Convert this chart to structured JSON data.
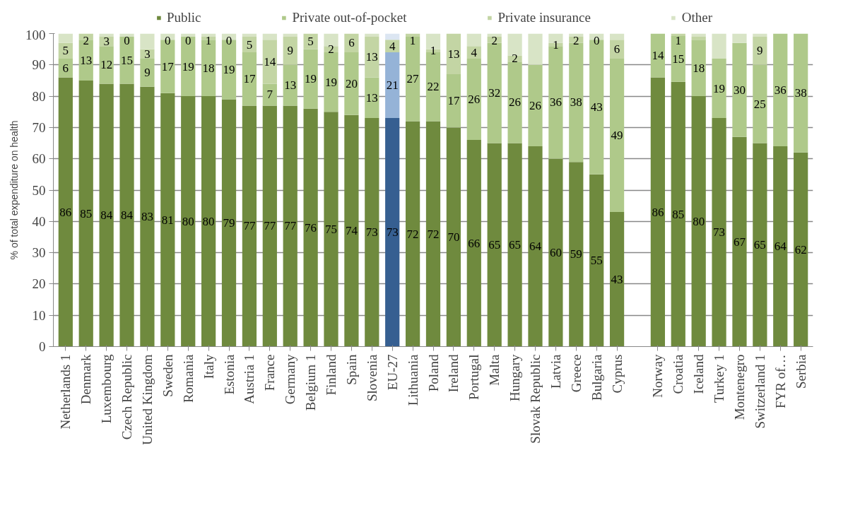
{
  "chart_data": {
    "type": "bar",
    "stacked": true,
    "ylabel": "% of total expenditure on health",
    "categories": [
      "Netherlands 1",
      "Denmark",
      "Luxembourg",
      "Czech Republic",
      "United Kingdom",
      "Sweden",
      "Romania",
      "Italy",
      "Estonia",
      "Austria 1",
      "France",
      "Germany",
      "Belgium 1",
      "Finland",
      "Spain",
      "Slovenia",
      "EU-27",
      "Lithuania",
      "Poland",
      "Ireland",
      "Portugal",
      "Malta",
      "Hungary",
      "Slovak Republic",
      "Latvia",
      "Greece",
      "Bulgaria",
      "Cyprus",
      null,
      "Norway",
      "Croatia",
      "Iceland",
      "Turkey 1",
      "Montenegro",
      "Switzerland 1",
      "FYR of…",
      "Serbia"
    ],
    "ylim": [
      0,
      100
    ],
    "yticks": [
      0,
      10,
      20,
      30,
      40,
      50,
      60,
      70,
      80,
      90,
      100
    ],
    "grid": "y",
    "legend": "top",
    "series": [
      {
        "name": "Public",
        "color": "#6f8a3e",
        "colors": [
          "#6f8a3e",
          "#6f8a3e",
          "#6f8a3e",
          "#6f8a3e",
          "#6f8a3e",
          "#6f8a3e",
          "#6f8a3e",
          "#6f8a3e",
          "#6f8a3e",
          "#6f8a3e",
          "#6f8a3e",
          "#6f8a3e",
          "#6f8a3e",
          "#6f8a3e",
          "#6f8a3e",
          "#6f8a3e",
          "#365f91",
          "#6f8a3e",
          "#6f8a3e",
          "#6f8a3e",
          "#6f8a3e",
          "#6f8a3e",
          "#6f8a3e",
          "#6f8a3e",
          "#6f8a3e",
          "#6f8a3e",
          "#6f8a3e",
          "#6f8a3e",
          "#6f8a3e",
          "#6f8a3e",
          "#6f8a3e",
          "#6f8a3e",
          "#6f8a3e",
          "#6f8a3e",
          "#6f8a3e",
          "#6f8a3e",
          "#6f8a3e"
        ],
        "values": [
          86,
          85,
          84,
          84,
          83,
          81,
          80,
          80,
          79,
          77,
          77,
          77,
          76,
          75,
          74,
          73,
          73,
          72,
          72,
          70,
          66,
          65,
          65,
          64,
          60,
          59,
          55,
          43,
          null,
          86,
          84.6,
          80,
          73,
          67,
          65,
          64,
          62
        ],
        "value_labels": [
          "86",
          "85",
          "84",
          "84",
          "83",
          "81",
          "80",
          "80",
          "79",
          "77",
          "77",
          "77",
          "76",
          "75",
          "74",
          "73",
          "73",
          "72",
          "72",
          "70",
          "66",
          "65",
          "65",
          "64",
          "60",
          "59",
          "55",
          "43",
          null,
          "86",
          "85",
          "80",
          "73",
          "67",
          "65",
          "64",
          "62"
        ]
      },
      {
        "name": "Private out-of-pocket",
        "color": "#afc98a",
        "colors": [
          "#afc98a",
          "#afc98a",
          "#afc98a",
          "#afc98a",
          "#afc98a",
          "#afc98a",
          "#afc98a",
          "#afc98a",
          "#afc98a",
          "#afc98a",
          "#afc98a",
          "#afc98a",
          "#afc98a",
          "#afc98a",
          "#afc98a",
          "#afc98a",
          "#95b3d7",
          "#afc98a",
          "#afc98a",
          "#afc98a",
          "#afc98a",
          "#afc98a",
          "#afc98a",
          "#afc98a",
          "#afc98a",
          "#afc98a",
          "#afc98a",
          "#afc98a",
          "#afc98a",
          "#afc98a",
          "#afc98a",
          "#afc98a",
          "#afc98a",
          "#afc98a",
          "#afc98a",
          "#afc98a",
          "#afc98a"
        ],
        "values": [
          6,
          13,
          12,
          15,
          9,
          17,
          19,
          18,
          19,
          17,
          7,
          13,
          19,
          19,
          20,
          13,
          21,
          27,
          22,
          17,
          26,
          32,
          26,
          26,
          36,
          38,
          43,
          49,
          null,
          14,
          14.6,
          18,
          19,
          30,
          25,
          36,
          38
        ],
        "value_labels": [
          "6",
          "13",
          "12",
          "15",
          "9",
          "17",
          "19",
          "18",
          "19",
          "17",
          "7",
          "13",
          "19",
          "19",
          "20",
          "13",
          "21",
          "27",
          "22",
          "17",
          "26",
          "32",
          "26",
          "26",
          "36",
          "38",
          "43",
          "49",
          null,
          "14",
          "15",
          "18",
          "19",
          "30",
          "25",
          "36",
          "38"
        ]
      },
      {
        "name": "Private insurance",
        "color": "#c3d5a4",
        "colors": [
          "#c3d5a4",
          "#c3d5a4",
          "#c3d5a4",
          "#c3d5a4",
          "#c3d5a4",
          "#c3d5a4",
          "#c3d5a4",
          "#c3d5a4",
          "#c3d5a4",
          "#c3d5a4",
          "#c3d5a4",
          "#c3d5a4",
          "#c3d5a4",
          "#c3d5a4",
          "#c3d5a4",
          "#c3d5a4",
          "#c3d5a4",
          "#c3d5a4",
          "#c3d5a4",
          "#c3d5a4",
          "#c3d5a4",
          "#c3d5a4",
          "#c3d5a4",
          "#c3d5a4",
          "#c3d5a4",
          "#c3d5a4",
          "#c3d5a4",
          "#c3d5a4",
          "#c3d5a4",
          "#c3d5a4",
          "#c3d5a4",
          "#c3d5a4",
          "#c3d5a4",
          "#c3d5a4",
          "#c3d5a4",
          "#c3d5a4",
          "#c3d5a4"
        ],
        "values": [
          5,
          2,
          3,
          0,
          3,
          0,
          0,
          1,
          0,
          5,
          14,
          9,
          5,
          2,
          6,
          13,
          4,
          1,
          1,
          13,
          4,
          2,
          2,
          0,
          1,
          2,
          0,
          6,
          null,
          0,
          0.8,
          1,
          0,
          0,
          9,
          0,
          0
        ],
        "value_labels": [
          "5",
          "2",
          "3",
          "0",
          "3",
          "0",
          "0",
          "1",
          "0",
          "5",
          "14",
          "9",
          "5",
          "2",
          "6",
          "13",
          "4",
          "1",
          "1",
          "13",
          "4",
          "2",
          "2",
          null,
          "1",
          "2",
          "0",
          "6",
          null,
          null,
          "1",
          null,
          null,
          null,
          "9",
          null,
          null
        ]
      },
      {
        "name": "Other",
        "color": "#d8e4c6",
        "colors": [
          "#d8e4c6",
          "#d8e4c6",
          "#d8e4c6",
          "#d8e4c6",
          "#d8e4c6",
          "#d8e4c6",
          "#d8e4c6",
          "#d8e4c6",
          "#d8e4c6",
          "#d8e4c6",
          "#d8e4c6",
          "#d8e4c6",
          "#d8e4c6",
          "#d8e4c6",
          "#d8e4c6",
          "#d8e4c6",
          "#dce6f2",
          "#d8e4c6",
          "#d8e4c6",
          "#d8e4c6",
          "#d8e4c6",
          "#d8e4c6",
          "#d8e4c6",
          "#d8e4c6",
          "#d8e4c6",
          "#d8e4c6",
          "#d8e4c6",
          "#d8e4c6",
          "#d8e4c6",
          "#d8e4c6",
          "#d8e4c6",
          "#d8e4c6",
          "#d8e4c6",
          "#d8e4c6",
          "#d8e4c6",
          "#d8e4c6",
          "#d8e4c6"
        ],
        "values": [
          3,
          0,
          1,
          1,
          5,
          2,
          1,
          1,
          2,
          1,
          2,
          1,
          0,
          4,
          0,
          1,
          2,
          0,
          5,
          0,
          4,
          1,
          7,
          10,
          3,
          1,
          2,
          2,
          null,
          0,
          0,
          1,
          8,
          3,
          1,
          0,
          0
        ]
      }
    ]
  }
}
